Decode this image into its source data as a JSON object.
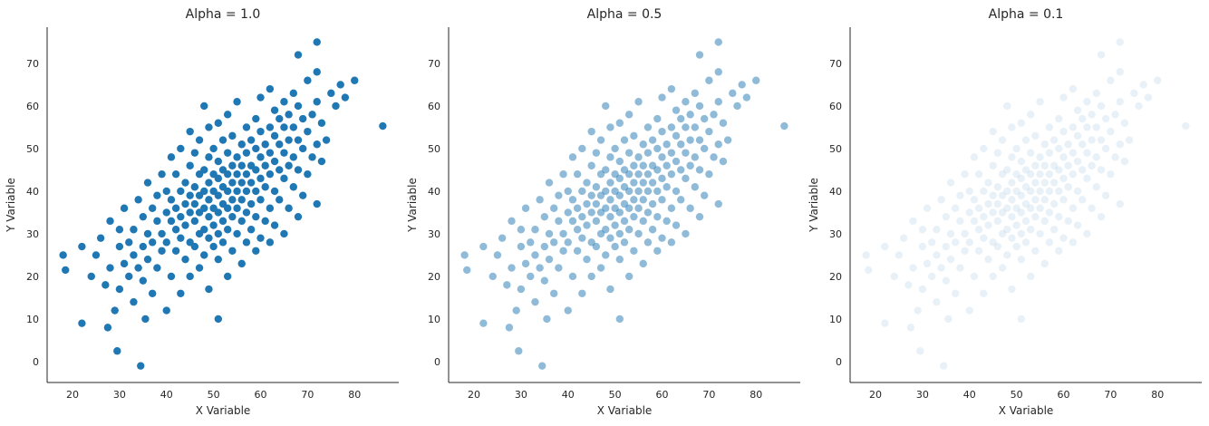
{
  "chart_data": [
    {
      "type": "scatter",
      "title": "Alpha = 1.0",
      "alpha": 1.0
    },
    {
      "type": "scatter",
      "title": "Alpha = 0.5",
      "alpha": 0.5
    },
    {
      "type": "scatter",
      "title": "Alpha = 0.1",
      "alpha": 0.1
    }
  ],
  "shared": {
    "xlabel": "X Variable",
    "ylabel": "Y Variable",
    "xlim": [
      14.6,
      89.4
    ],
    "ylim": [
      -4.9,
      78.5
    ],
    "xticks": [
      20,
      30,
      40,
      50,
      60,
      70,
      80
    ],
    "yticks": [
      0,
      10,
      20,
      30,
      40,
      50,
      60,
      70
    ],
    "grid": false,
    "color": "#1f77b4",
    "points": [
      [
        86,
        55.3
      ],
      [
        34.5,
        -1
      ],
      [
        29.5,
        2.5
      ],
      [
        22,
        9
      ],
      [
        51,
        10
      ],
      [
        35.5,
        10
      ],
      [
        27.5,
        8
      ],
      [
        18,
        25
      ],
      [
        18.5,
        21.5
      ],
      [
        72,
        75
      ],
      [
        80,
        66
      ],
      [
        77,
        65
      ],
      [
        68,
        72
      ],
      [
        75,
        63
      ],
      [
        72,
        68
      ],
      [
        22,
        27
      ],
      [
        24,
        20
      ],
      [
        25,
        25
      ],
      [
        26,
        29
      ],
      [
        27,
        18
      ],
      [
        28,
        22
      ],
      [
        28,
        33
      ],
      [
        29,
        12
      ],
      [
        30,
        17
      ],
      [
        30,
        27
      ],
      [
        30,
        31
      ],
      [
        31,
        23
      ],
      [
        31,
        36
      ],
      [
        32,
        20
      ],
      [
        32,
        28
      ],
      [
        33,
        14
      ],
      [
        33,
        25
      ],
      [
        33,
        31
      ],
      [
        34,
        22
      ],
      [
        34,
        38
      ],
      [
        35,
        19
      ],
      [
        35,
        27
      ],
      [
        35,
        34
      ],
      [
        36,
        24
      ],
      [
        36,
        30
      ],
      [
        36,
        42
      ],
      [
        37,
        16
      ],
      [
        37,
        28
      ],
      [
        37,
        36
      ],
      [
        38,
        22
      ],
      [
        38,
        33
      ],
      [
        38,
        39
      ],
      [
        39,
        26
      ],
      [
        39,
        30
      ],
      [
        39,
        44
      ],
      [
        40,
        12
      ],
      [
        40,
        28
      ],
      [
        40,
        35
      ],
      [
        40,
        40
      ],
      [
        41,
        20
      ],
      [
        41,
        33
      ],
      [
        41,
        38
      ],
      [
        41,
        48
      ],
      [
        42,
        26
      ],
      [
        42,
        31
      ],
      [
        42,
        36
      ],
      [
        42,
        44
      ],
      [
        43,
        16
      ],
      [
        43,
        29
      ],
      [
        43,
        34
      ],
      [
        43,
        40
      ],
      [
        43,
        50
      ],
      [
        44,
        24
      ],
      [
        44,
        32
      ],
      [
        44,
        37
      ],
      [
        44,
        42
      ],
      [
        45,
        20
      ],
      [
        45,
        28
      ],
      [
        45,
        35
      ],
      [
        45,
        39
      ],
      [
        45,
        46
      ],
      [
        45,
        54
      ],
      [
        46,
        27
      ],
      [
        46,
        33
      ],
      [
        46,
        37
      ],
      [
        46,
        41
      ],
      [
        46,
        49
      ],
      [
        47,
        22
      ],
      [
        47,
        30
      ],
      [
        47,
        35
      ],
      [
        47,
        39
      ],
      [
        47,
        44
      ],
      [
        47,
        52
      ],
      [
        48,
        25
      ],
      [
        48,
        31
      ],
      [
        48,
        36
      ],
      [
        48,
        40
      ],
      [
        48,
        45
      ],
      [
        48,
        60
      ],
      [
        49,
        17
      ],
      [
        49,
        29
      ],
      [
        49,
        34
      ],
      [
        49,
        38
      ],
      [
        49,
        42
      ],
      [
        49,
        48
      ],
      [
        49,
        55
      ],
      [
        50,
        27
      ],
      [
        50,
        32
      ],
      [
        50,
        36
      ],
      [
        50,
        40
      ],
      [
        50,
        44
      ],
      [
        50,
        50
      ],
      [
        51,
        24
      ],
      [
        51,
        30
      ],
      [
        51,
        35
      ],
      [
        51,
        39
      ],
      [
        51,
        43
      ],
      [
        51,
        47
      ],
      [
        51,
        56
      ],
      [
        52,
        28
      ],
      [
        52,
        33
      ],
      [
        52,
        37
      ],
      [
        52,
        41
      ],
      [
        52,
        45
      ],
      [
        52,
        52
      ],
      [
        53,
        20
      ],
      [
        53,
        31
      ],
      [
        53,
        36
      ],
      [
        53,
        40
      ],
      [
        53,
        44
      ],
      [
        53,
        49
      ],
      [
        53,
        58
      ],
      [
        54,
        26
      ],
      [
        54,
        34
      ],
      [
        54,
        38
      ],
      [
        54,
        42
      ],
      [
        54,
        46
      ],
      [
        54,
        53
      ],
      [
        55,
        30
      ],
      [
        55,
        36
      ],
      [
        55,
        40
      ],
      [
        55,
        44
      ],
      [
        55,
        48
      ],
      [
        55,
        61
      ],
      [
        56,
        23
      ],
      [
        56,
        33
      ],
      [
        56,
        38
      ],
      [
        56,
        42
      ],
      [
        56,
        46
      ],
      [
        56,
        51
      ],
      [
        57,
        28
      ],
      [
        57,
        35
      ],
      [
        57,
        40
      ],
      [
        57,
        44
      ],
      [
        57,
        49
      ],
      [
        57,
        55
      ],
      [
        58,
        31
      ],
      [
        58,
        37
      ],
      [
        58,
        42
      ],
      [
        58,
        46
      ],
      [
        58,
        52
      ],
      [
        59,
        26
      ],
      [
        59,
        34
      ],
      [
        59,
        40
      ],
      [
        59,
        45
      ],
      [
        59,
        50
      ],
      [
        59,
        57
      ],
      [
        60,
        29
      ],
      [
        60,
        38
      ],
      [
        60,
        43
      ],
      [
        60,
        48
      ],
      [
        60,
        54
      ],
      [
        60,
        62
      ],
      [
        61,
        33
      ],
      [
        61,
        41
      ],
      [
        61,
        46
      ],
      [
        61,
        51
      ],
      [
        62,
        28
      ],
      [
        62,
        36
      ],
      [
        62,
        44
      ],
      [
        62,
        49
      ],
      [
        62,
        55
      ],
      [
        62,
        64
      ],
      [
        63,
        32
      ],
      [
        63,
        40
      ],
      [
        63,
        47
      ],
      [
        63,
        53
      ],
      [
        63,
        59
      ],
      [
        64,
        38
      ],
      [
        64,
        45
      ],
      [
        64,
        51
      ],
      [
        64,
        57
      ],
      [
        65,
        30
      ],
      [
        65,
        43
      ],
      [
        65,
        49
      ],
      [
        65,
        55
      ],
      [
        65,
        61
      ],
      [
        66,
        36
      ],
      [
        66,
        46
      ],
      [
        66,
        52
      ],
      [
        66,
        58
      ],
      [
        67,
        41
      ],
      [
        67,
        48
      ],
      [
        67,
        55
      ],
      [
        67,
        63
      ],
      [
        68,
        34
      ],
      [
        68,
        45
      ],
      [
        68,
        52
      ],
      [
        68,
        60
      ],
      [
        69,
        39
      ],
      [
        69,
        50
      ],
      [
        69,
        57
      ],
      [
        70,
        44
      ],
      [
        70,
        54
      ],
      [
        70,
        66
      ],
      [
        71,
        48
      ],
      [
        71,
        58
      ],
      [
        72,
        37
      ],
      [
        72,
        51
      ],
      [
        72,
        61
      ],
      [
        73,
        47
      ],
      [
        73,
        56
      ],
      [
        74,
        52
      ],
      [
        76,
        60
      ],
      [
        78,
        62
      ]
    ]
  }
}
